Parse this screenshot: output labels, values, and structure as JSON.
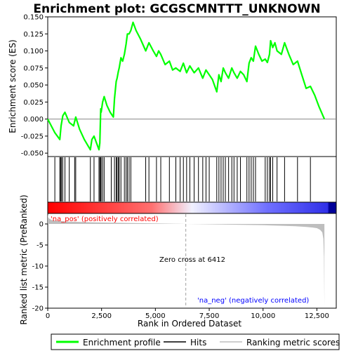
{
  "chart_data": {
    "type": "line",
    "title": "Enrichment plot: GCGSCMNTTT_UNKNOWN",
    "colors": {
      "es_line": "#00ff00",
      "hit": "#000000",
      "metric_fill": "#bebebe",
      "zero_cross_line": "#a0a0a0",
      "pos_label": "#ff0000",
      "neg_label": "#0000ff",
      "gradient_pos": "#ff0000",
      "gradient_neg": "#0000ff"
    },
    "es_panel": {
      "ylabel": "Enrichment score (ES)",
      "ylim": [
        -0.055,
        0.15
      ],
      "yticks": [
        "0.150",
        "0.125",
        "0.100",
        "0.075",
        "0.050",
        "0.025",
        "0.000",
        "-0.025",
        "-0.050"
      ],
      "ytick_values": [
        0.15,
        0.125,
        0.1,
        0.075,
        0.05,
        0.025,
        0.0,
        -0.025,
        -0.05
      ],
      "series": [
        {
          "name": "Enrichment profile",
          "x": [
            0,
            330,
            560,
            620,
            700,
            800,
            1000,
            1200,
            1300,
            1480,
            1700,
            1980,
            2050,
            2150,
            2380,
            2420,
            2460,
            2480,
            2550,
            2620,
            2750,
            2900,
            3050,
            3100,
            3180,
            3220,
            3280,
            3320,
            3400,
            3480,
            3560,
            3640,
            3700,
            3780,
            3860,
            3960,
            4100,
            4300,
            4550,
            4700,
            4900,
            5050,
            5150,
            5250,
            5450,
            5650,
            5800,
            5950,
            6150,
            6300,
            6450,
            6600,
            6800,
            7000,
            7200,
            7350,
            7500,
            7650,
            7850,
            7950,
            8050,
            8150,
            8250,
            8400,
            8550,
            8650,
            8800,
            8950,
            9100,
            9250,
            9350,
            9450,
            9550,
            9650,
            9800,
            9950,
            10100,
            10200,
            10300,
            10350,
            10450,
            10550,
            10650,
            10850,
            11000,
            11200,
            11400,
            11600,
            11800,
            12000,
            12200,
            12400,
            12600,
            12850
          ],
          "y": [
            0.0,
            -0.02,
            -0.03,
            -0.01,
            0.005,
            0.01,
            -0.005,
            -0.01,
            0.003,
            -0.015,
            -0.03,
            -0.045,
            -0.03,
            -0.025,
            -0.045,
            -0.035,
            0.015,
            0.01,
            0.025,
            0.033,
            0.02,
            0.01,
            0.003,
            0.03,
            0.055,
            0.06,
            0.07,
            0.075,
            0.09,
            0.085,
            0.095,
            0.11,
            0.125,
            0.125,
            0.13,
            0.142,
            0.13,
            0.118,
            0.1,
            0.112,
            0.1,
            0.092,
            0.1,
            0.095,
            0.08,
            0.085,
            0.072,
            0.075,
            0.07,
            0.082,
            0.068,
            0.078,
            0.068,
            0.075,
            0.06,
            0.072,
            0.065,
            0.058,
            0.04,
            0.065,
            0.055,
            0.075,
            0.068,
            0.06,
            0.075,
            0.068,
            0.06,
            0.07,
            0.065,
            0.055,
            0.082,
            0.09,
            0.085,
            0.107,
            0.095,
            0.085,
            0.088,
            0.083,
            0.095,
            0.115,
            0.105,
            0.112,
            0.1,
            0.095,
            0.112,
            0.095,
            0.08,
            0.085,
            0.065,
            0.045,
            0.048,
            0.035,
            0.018,
            0.0
          ]
        }
      ]
    },
    "hits_x": [
      330,
      560,
      600,
      640,
      700,
      800,
      1000,
      1250,
      1300,
      1980,
      2150,
      2380,
      2420,
      2460,
      2480,
      2550,
      2620,
      2950,
      3100,
      3180,
      3220,
      3280,
      3320,
      3400,
      3560,
      3640,
      3700,
      3780,
      3860,
      4550,
      4700,
      5050,
      5250,
      5650,
      5950,
      6150,
      6300,
      6450,
      6600,
      6800,
      7000,
      7200,
      7350,
      7500,
      7850,
      7950,
      8050,
      8150,
      8250,
      8400,
      8550,
      8650,
      8800,
      8950,
      9250,
      9350,
      9450,
      9550,
      9650,
      10100,
      10200,
      10300,
      10350,
      10450,
      10650,
      11000,
      11600,
      12200
    ],
    "gradient": {
      "zero_fraction": 0.5,
      "stops": [
        {
          "offset": 0.0,
          "color": "#ff0000"
        },
        {
          "offset": 0.36,
          "color": "#ff7070"
        },
        {
          "offset": 0.5,
          "color": "#f0f0ff"
        },
        {
          "offset": 0.76,
          "color": "#7070ff"
        },
        {
          "offset": 0.97,
          "color": "#3030e8"
        },
        {
          "offset": 0.975,
          "color": "#000099"
        },
        {
          "offset": 1.0,
          "color": "#000099"
        }
      ]
    },
    "metric_panel": {
      "ylabel": "Ranked list metric (PreRanked)",
      "ylim": [
        -20,
        2.5
      ],
      "yticks": [
        "0",
        "-5",
        "-10",
        "-15",
        "-20"
      ],
      "ytick_values": [
        0,
        -5,
        -10,
        -15,
        -20
      ],
      "metric_x": [
        0,
        30,
        80,
        200,
        500,
        1000,
        2000,
        3000,
        4000,
        5000,
        6000,
        6412,
        7000,
        8000,
        9000,
        10000,
        11000,
        11500,
        12000,
        12300,
        12500,
        12650,
        12750,
        12800,
        12830,
        12850
      ],
      "metric_y": [
        2.3,
        1.5,
        1.2,
        0.9,
        0.7,
        0.55,
        0.4,
        0.3,
        0.2,
        0.12,
        0.05,
        0.0,
        -0.05,
        -0.12,
        -0.2,
        -0.3,
        -0.45,
        -0.55,
        -0.7,
        -0.85,
        -1.0,
        -1.4,
        -2.0,
        -3.5,
        -8.0,
        -19.5
      ],
      "zero_cross_label": "Zero cross at 6412",
      "zero_cross_x": 6412,
      "pos_label": "'na_pos' (positively correlated)",
      "neg_label": "'na_neg' (negatively correlated)"
    },
    "xaxis": {
      "label": "Rank in Ordered Dataset",
      "xlim": [
        0,
        13400
      ],
      "ticks": [
        "0",
        "2,500",
        "5,000",
        "7,500",
        "10,000",
        "12,500"
      ],
      "tick_values": [
        0,
        2500,
        5000,
        7500,
        10000,
        12500
      ]
    },
    "legend": {
      "placement": "bottom",
      "items": [
        "Enrichment profile",
        "Hits",
        "Ranking metric scores"
      ]
    }
  }
}
